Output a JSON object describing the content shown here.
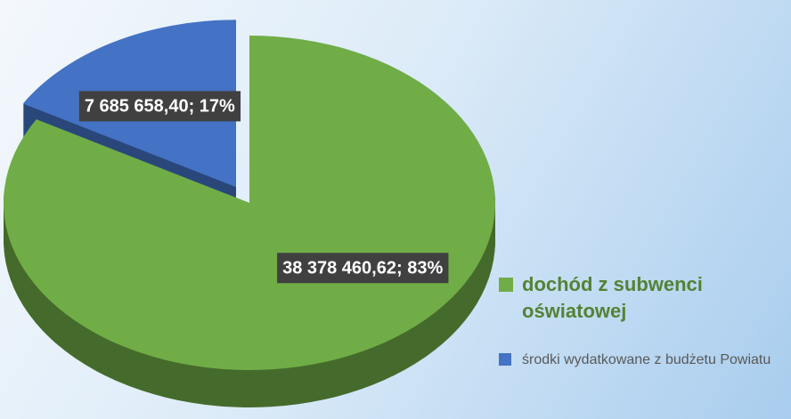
{
  "chart_data": {
    "type": "pie",
    "categories": [
      "dochód z subwenci oświatowej",
      "środki wydatkowane z budżetu Powiatu"
    ],
    "values": [
      38378460.62,
      7685658.4
    ],
    "value_labels": [
      "38 378 460,62; 83%",
      "7 685 658,40; 17%"
    ],
    "colors": [
      "#70ad47",
      "#4472c4"
    ],
    "exploded": [
      false,
      true
    ],
    "legend": "right"
  }
}
